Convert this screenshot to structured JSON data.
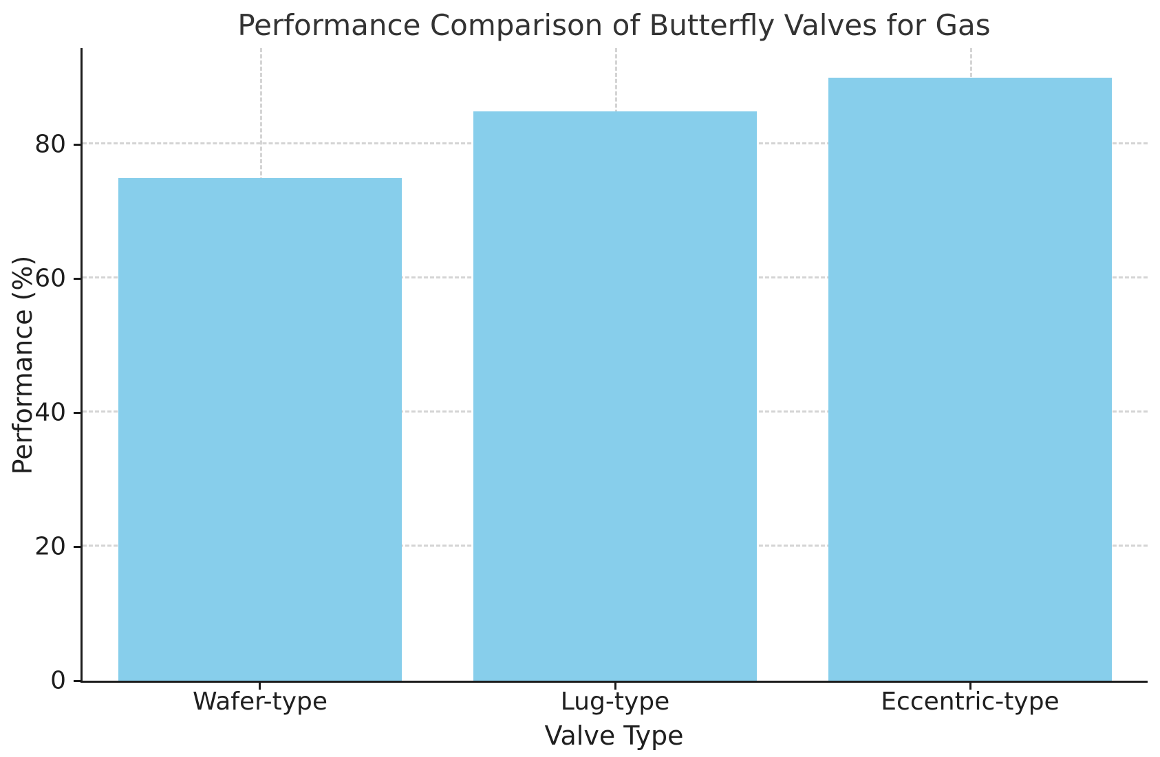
{
  "chart_data": {
    "type": "bar",
    "title": "Performance Comparison of Butterfly Valves for Gas",
    "xlabel": "Valve Type",
    "ylabel": "Performance (%)",
    "categories": [
      "Wafer-type",
      "Lug-type",
      "Eccentric-type"
    ],
    "values": [
      75,
      85,
      90
    ],
    "yticks": [
      0,
      20,
      40,
      60,
      80
    ],
    "ylim": [
      0,
      94.4
    ],
    "bar_width_fraction": 0.8,
    "grid": true,
    "grid_style": "dashed",
    "legend": "none",
    "colors": {
      "bar": "#87CEEB",
      "grid": "#d4d4d4",
      "spine": "#1c1c1c",
      "text": "#1f1f1f",
      "title_text": "#333333",
      "background": "#ffffff"
    }
  }
}
